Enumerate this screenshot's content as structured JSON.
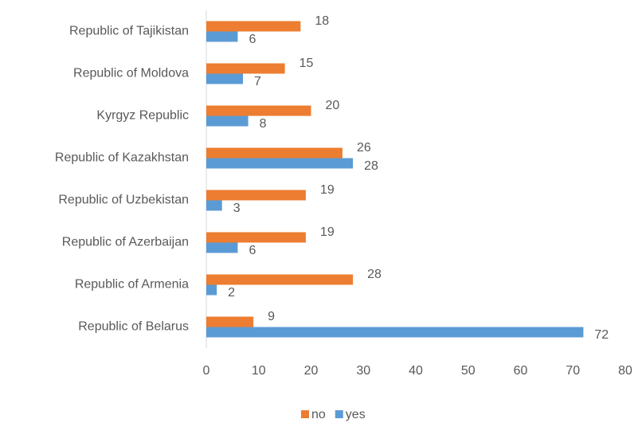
{
  "chart_data": {
    "type": "bar",
    "orientation": "horizontal",
    "categories": [
      "Republic of Tajikistan",
      "Republic of Moldova",
      "Kyrgyz Republic",
      "Republic of Kazakhstan",
      "Republic of Uzbekistan",
      "Republic of Azerbaijan",
      "Republic of Armenia",
      "Republic of Belarus"
    ],
    "series": [
      {
        "name": "no",
        "color": "#ed7d31",
        "values": [
          18,
          15,
          20,
          26,
          19,
          19,
          28,
          9
        ]
      },
      {
        "name": "yes",
        "color": "#5b9bd5",
        "values": [
          6,
          7,
          8,
          28,
          3,
          6,
          2,
          72
        ]
      }
    ],
    "xlim": [
      0,
      80
    ],
    "xticks": [
      0,
      10,
      20,
      30,
      40,
      50,
      60,
      70,
      80
    ],
    "grid": false,
    "legend": "bottom"
  }
}
